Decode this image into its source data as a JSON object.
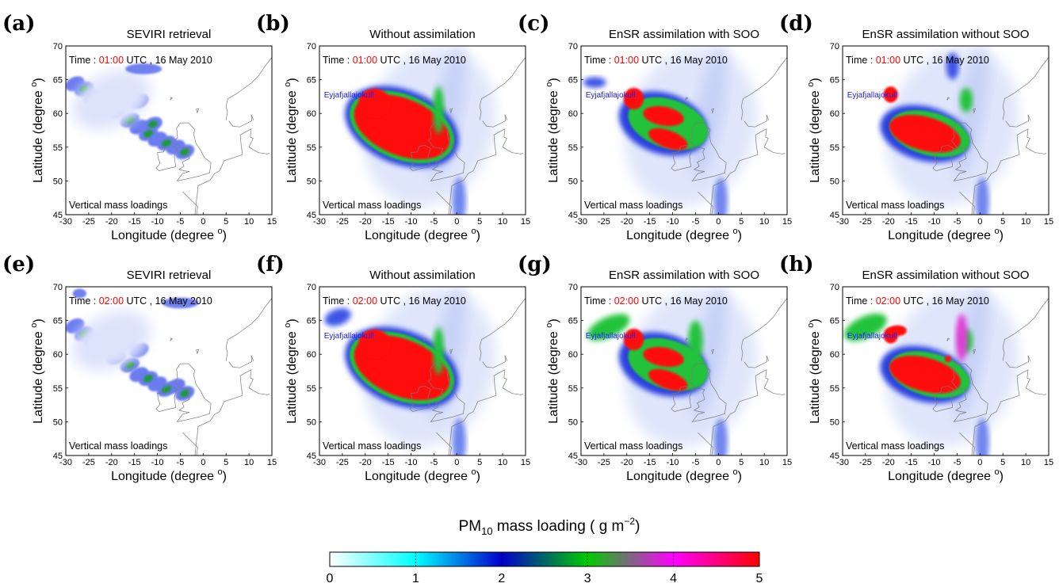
{
  "chart_data": {
    "type": "heatmap",
    "panels": [
      {
        "letter": "(a)",
        "title": "SEVIRI retrieval",
        "time_value": "01:00",
        "kind": "obs"
      },
      {
        "letter": "(b)",
        "title": "Without assimilation",
        "time_value": "01:00",
        "kind": "free"
      },
      {
        "letter": "(c)",
        "title": "EnSR assimilation with SOO",
        "time_value": "01:00",
        "kind": "soo"
      },
      {
        "letter": "(d)",
        "title": "EnSR assimilation without SOO",
        "time_value": "01:00",
        "kind": "nosoo"
      },
      {
        "letter": "(e)",
        "title": "SEVIRI retrieval",
        "time_value": "02:00",
        "kind": "obs"
      },
      {
        "letter": "(f)",
        "title": "Without assimilation",
        "time_value": "02:00",
        "kind": "free"
      },
      {
        "letter": "(g)",
        "title": "EnSR assimilation with SOO",
        "time_value": "02:00",
        "kind": "soo"
      },
      {
        "letter": "(h)",
        "title": "EnSR assimilation without SOO",
        "time_value": "02:00",
        "kind": "nosoo"
      }
    ],
    "time_label_prefix": "Time : ",
    "time_label_suffix": "  UTC , 16 May 2010",
    "volcano_label": "Eyjafjallajokull",
    "panel_note": "Vertical mass loadings",
    "xlabel": "Longitude (degree",
    "ylabel": "Latitude (degree",
    "degree_symbol": "o",
    "xlim": [
      -30,
      15
    ],
    "ylim": [
      45,
      70
    ],
    "xticks": [
      -30,
      -25,
      -20,
      -15,
      -10,
      -5,
      0,
      5,
      10,
      15
    ],
    "yticks": [
      45,
      50,
      55,
      60,
      65,
      70
    ],
    "colorbar": {
      "label_main": "PM",
      "label_sub": "10",
      "label_rest": " mass loading ( g m",
      "label_sup": "−2",
      "label_end": ")",
      "ticks": [
        0,
        1,
        2,
        3,
        4,
        5
      ],
      "range": [
        0,
        5
      ],
      "colors": [
        "#ffffff",
        "#00ffff",
        "#0000cc",
        "#00cc00",
        "#ff00ff",
        "#ff0000"
      ]
    },
    "colors": {
      "time_value": "#ff0000",
      "volcano": "#1a1aff",
      "coast": "#7a7a7a"
    }
  }
}
